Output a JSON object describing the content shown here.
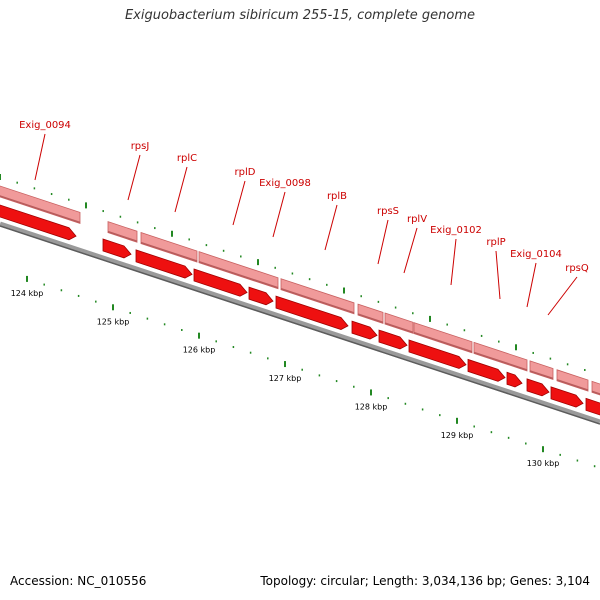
{
  "title": "Exiguobacterium sibiricum 255-15, complete genome",
  "footer": {
    "accession": "Accession: NC_010556",
    "topology": "Topology: circular; Length: 3,034,136 bp; Genes: 3,104"
  },
  "colors": {
    "gene_forward": "#ee8888",
    "gene_reverse": "#ee1111",
    "backbone": "#777777",
    "tick": "#228822",
    "label": "#cc0000"
  },
  "genes": [
    {
      "name": "Exig_0094"
    },
    {
      "name": "rpsJ"
    },
    {
      "name": "rplC"
    },
    {
      "name": "rplD"
    },
    {
      "name": "Exig_0098"
    },
    {
      "name": "rplB"
    },
    {
      "name": "rpsS"
    },
    {
      "name": "rplV"
    },
    {
      "name": "Exig_0102"
    },
    {
      "name": "rplP"
    },
    {
      "name": "Exig_0104"
    },
    {
      "name": "rpsQ"
    }
  ],
  "kbp_labels": [
    "124 kbp",
    "125 kbp",
    "126 kbp",
    "127 kbp",
    "128 kbp",
    "129 kbp",
    "130 kbp"
  ]
}
